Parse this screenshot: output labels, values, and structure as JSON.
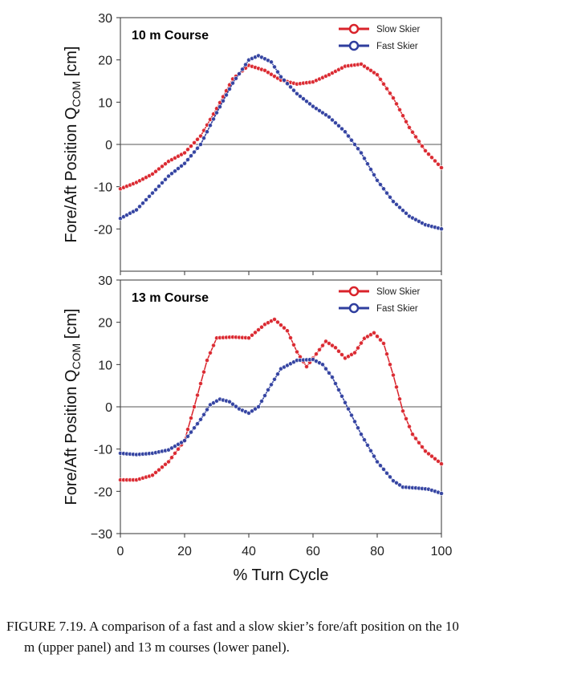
{
  "chart_data": [
    {
      "type": "line",
      "title": "10 m Course",
      "xlabel": "% Turn Cycle",
      "ylabel": "Fore/Aft Position Q",
      "ylabel_sub": "COM",
      "ylabel_unit": " [cm]",
      "xlim": [
        0,
        100
      ],
      "ylim": [
        -30,
        30
      ],
      "xticks": [
        0,
        20,
        40,
        60,
        80,
        100
      ],
      "yticks": [
        -20,
        -10,
        0,
        10,
        20,
        30
      ],
      "ytick_labels": [
        "-20",
        "-10",
        "0",
        "10",
        "20",
        "30"
      ],
      "legend_position": "top-right",
      "series": [
        {
          "name": "Slow Skier",
          "color": "#d9232b",
          "x": [
            0,
            5,
            10,
            15,
            20,
            25,
            30,
            35,
            40,
            45,
            50,
            55,
            60,
            65,
            70,
            75,
            80,
            85,
            90,
            95,
            100
          ],
          "y": [
            -10.5,
            -9,
            -7,
            -4,
            -2,
            2,
            8.5,
            15.5,
            18.7,
            17.5,
            15.2,
            14.3,
            14.8,
            16.5,
            18.5,
            19,
            16.5,
            11,
            4,
            -1.5,
            -5.5
          ]
        },
        {
          "name": "Fast Skier",
          "color": "#2f3e9e",
          "x": [
            0,
            5,
            10,
            15,
            20,
            25,
            30,
            35,
            40,
            43,
            47,
            50,
            55,
            60,
            65,
            70,
            75,
            80,
            85,
            90,
            95,
            100
          ],
          "y": [
            -17.5,
            -15.5,
            -11.5,
            -7.5,
            -4.5,
            0,
            7.5,
            14.5,
            20,
            21,
            19.5,
            16,
            12,
            9,
            6.5,
            3,
            -2,
            -8.5,
            -13.5,
            -17,
            -19,
            -20
          ]
        }
      ]
    },
    {
      "type": "line",
      "title": "13 m Course",
      "xlabel": "% Turn Cycle",
      "ylabel": "Fore/Aft Position Q",
      "ylabel_sub": "COM",
      "ylabel_unit": " [cm]",
      "xlim": [
        0,
        100
      ],
      "ylim": [
        -30,
        30
      ],
      "xticks": [
        0,
        20,
        40,
        60,
        80,
        100
      ],
      "xtick_labels": [
        "0",
        "20",
        "40",
        "60",
        "80",
        "100"
      ],
      "yticks": [
        -30,
        -20,
        -10,
        0,
        10,
        20,
        30
      ],
      "ytick_labels": [
        "−30",
        "-20",
        "-10",
        "0",
        "10",
        "20",
        "30"
      ],
      "legend_position": "top-right",
      "series": [
        {
          "name": "Slow Skier",
          "color": "#d9232b",
          "x": [
            0,
            5,
            10,
            15,
            20,
            23,
            27,
            30,
            35,
            40,
            45,
            48,
            52,
            55,
            58,
            61,
            64,
            67,
            70,
            73,
            76,
            79,
            82,
            85,
            88,
            91,
            95,
            100
          ],
          "y": [
            -17.3,
            -17.3,
            -16.2,
            -13,
            -8,
            0,
            11,
            16.3,
            16.5,
            16.3,
            19.5,
            20.7,
            18,
            13,
            9.5,
            12.5,
            15.5,
            14,
            11.5,
            12.8,
            16.2,
            17.5,
            15,
            7.5,
            -1,
            -6.5,
            -10.5,
            -13.5
          ]
        },
        {
          "name": "Fast Skier",
          "color": "#2f3e9e",
          "x": [
            0,
            5,
            10,
            15,
            20,
            25,
            28,
            31,
            34,
            37,
            40,
            43,
            46,
            50,
            55,
            60,
            63,
            66,
            70,
            75,
            80,
            85,
            88,
            92,
            96,
            100
          ],
          "y": [
            -11,
            -11.3,
            -11,
            -10.2,
            -8,
            -3,
            0.5,
            1.8,
            1.2,
            -0.5,
            -1.5,
            0,
            4,
            9,
            11,
            11.2,
            10,
            7,
            1,
            -6.5,
            -13,
            -17.5,
            -19,
            -19.2,
            -19.5,
            -20.5
          ]
        }
      ]
    }
  ],
  "caption": {
    "line1": "FIGURE 7.19. A comparison of a fast and a slow skier’s fore/aft position on the 10",
    "line2": "m (upper panel) and 13 m courses (lower panel)."
  }
}
